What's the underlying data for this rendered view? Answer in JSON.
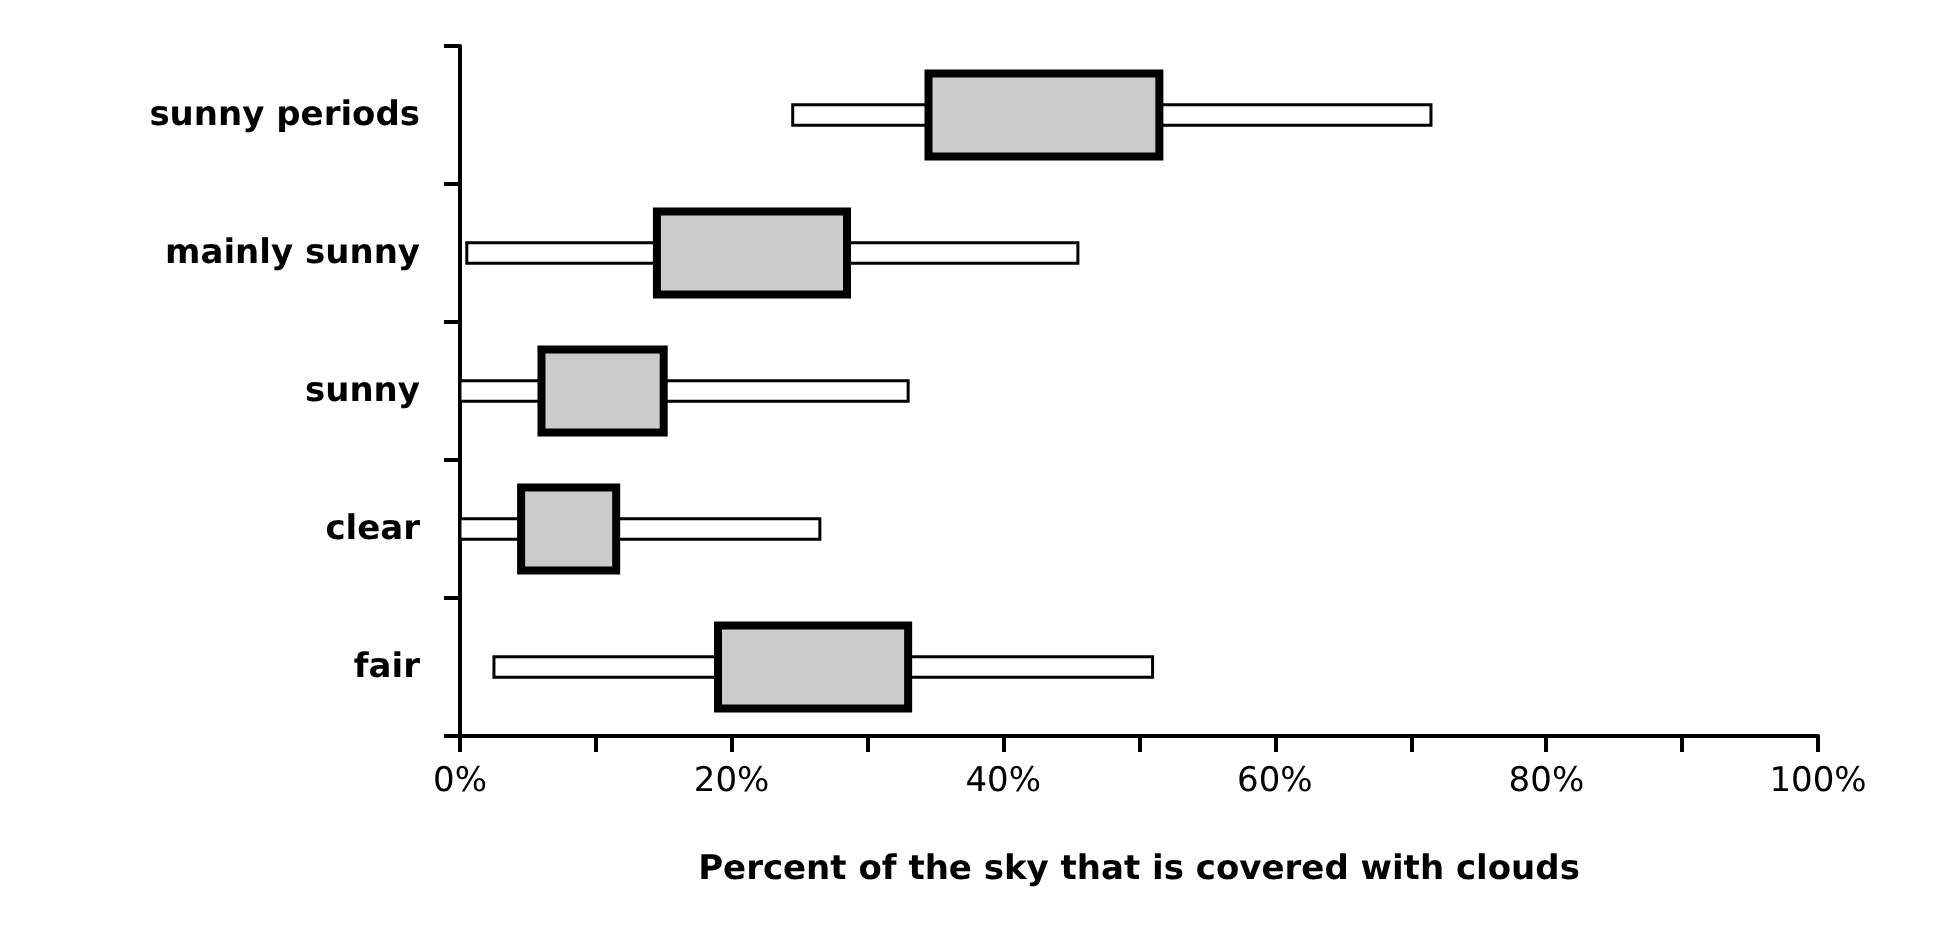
{
  "chart_data": {
    "type": "bar",
    "orientation": "horizontal",
    "xlabel": "Percent of the sky that is covered with clouds",
    "categories": [
      "sunny periods",
      "mainly sunny",
      "sunny",
      "clear",
      "fair"
    ],
    "series": [
      {
        "color": "#ffffff",
        "base": [
          24.5,
          0.5,
          0,
          0,
          2.5
        ],
        "values": [
          47,
          45,
          33,
          26.5,
          48.5
        ]
      },
      {
        "color": "#cccccc",
        "base": [
          34.5,
          14.5,
          6,
          4.5,
          19
        ],
        "values": [
          17,
          14,
          9,
          7,
          14
        ]
      }
    ],
    "xlim": [
      0,
      100
    ],
    "xticks": [
      {
        "value": 0,
        "label": "0%"
      },
      {
        "value": 10,
        "label": null
      },
      {
        "value": 20,
        "label": "20%"
      },
      {
        "value": 30,
        "label": null
      },
      {
        "value": 40,
        "label": "40%"
      },
      {
        "value": 50,
        "label": null
      },
      {
        "value": 60,
        "label": "60%"
      },
      {
        "value": 70,
        "label": null
      },
      {
        "value": 80,
        "label": "80%"
      },
      {
        "value": 90,
        "label": null
      },
      {
        "value": 100,
        "label": "100%"
      }
    ],
    "grid": false
  }
}
